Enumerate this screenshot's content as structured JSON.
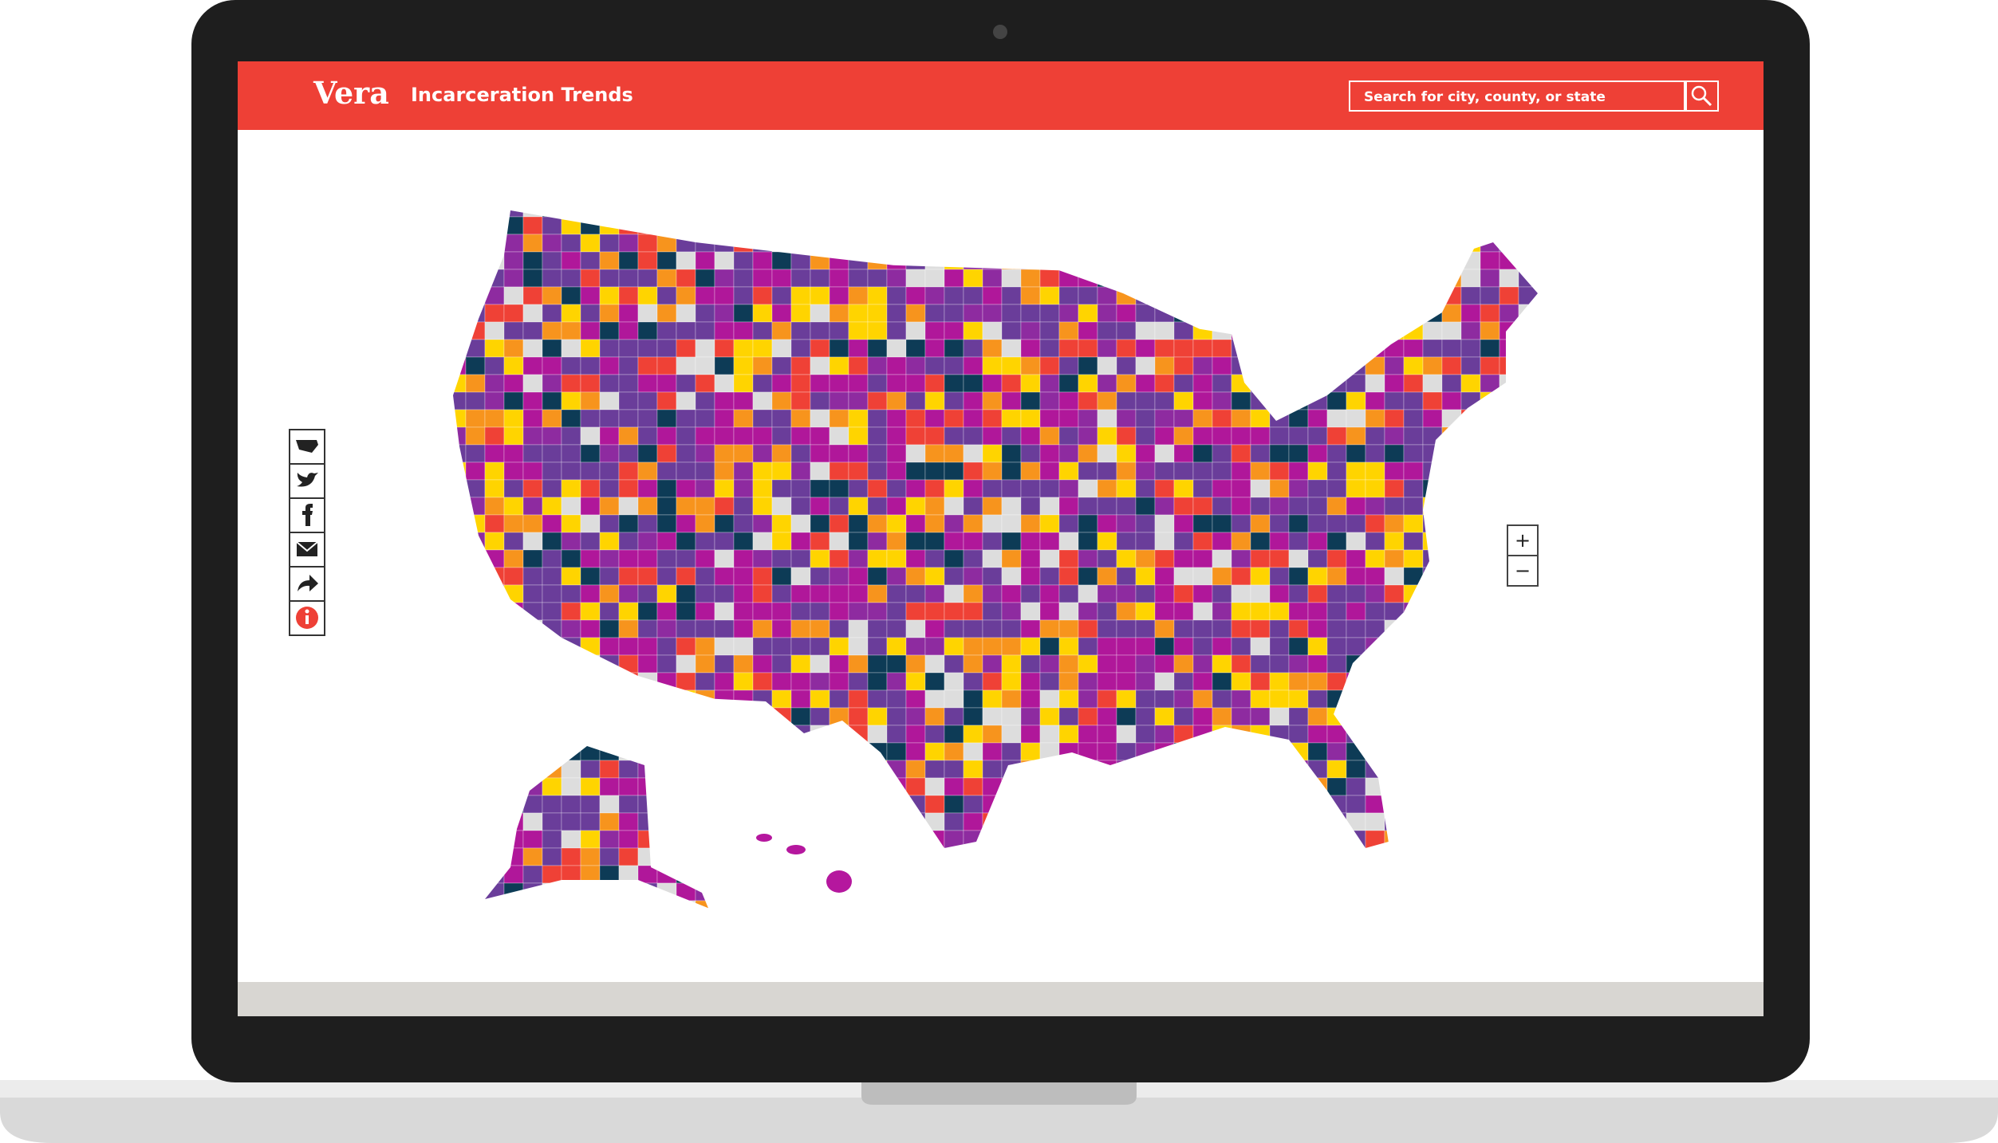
{
  "header": {
    "logo": "Vera",
    "title": "Incarceration Trends",
    "search_placeholder": "Search for city, county, or state"
  },
  "zoom": {
    "in": "+",
    "out": "−"
  }
}
